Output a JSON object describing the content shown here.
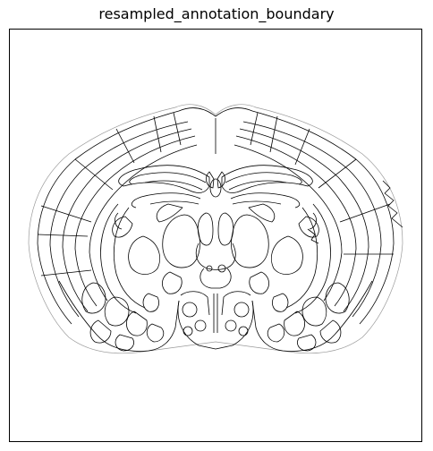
{
  "title": "resampled_annotation_boundary",
  "colors": {
    "background": "#ffffff",
    "line": "#000000",
    "outline_light": "#9a9a9a"
  }
}
